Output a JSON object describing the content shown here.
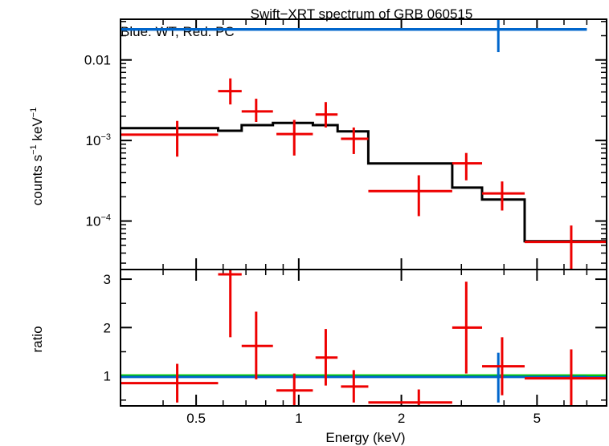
{
  "chart_data": {
    "type": "scatter",
    "title": "Swift−XRT spectrum of GRB 060515",
    "subtitle": "Blue: WT, Red: PC",
    "xlabel": "Energy (keV)",
    "xscale": "log",
    "xlim": [
      0.3,
      8.0
    ],
    "x_ticks": [
      {
        "v": 0.5,
        "label": "0.5"
      },
      {
        "v": 1,
        "label": "1"
      },
      {
        "v": 2,
        "label": "2"
      },
      {
        "v": 5,
        "label": "5"
      }
    ],
    "colors": {
      "pc": "#ee0000",
      "wt": "#0066cc",
      "model": "#000000",
      "unity": "#00cc00"
    },
    "top_panel": {
      "ylabel_main": "counts s",
      "ylabel_exp1": "−1",
      "ylabel_mid": " keV",
      "ylabel_exp2": "−1",
      "yscale": "log",
      "ylim": [
        2.5e-05,
        0.032
      ],
      "y_ticks": [
        {
          "v": 0.01,
          "label": "0.01"
        },
        {
          "v": 0.001,
          "base": "10",
          "exp": "−3"
        },
        {
          "v": 0.0001,
          "base": "10",
          "exp": "−4"
        }
      ],
      "pc_data": [
        {
          "x": 0.44,
          "xlo": 0.3,
          "xhi": 0.58,
          "y": 0.00118,
          "ylo": 0.00063,
          "yhi": 0.00175
        },
        {
          "x": 0.63,
          "xlo": 0.58,
          "xhi": 0.68,
          "y": 0.0041,
          "ylo": 0.0028,
          "yhi": 0.0059
        },
        {
          "x": 0.75,
          "xlo": 0.68,
          "xhi": 0.84,
          "y": 0.0023,
          "ylo": 0.0017,
          "yhi": 0.0033
        },
        {
          "x": 0.97,
          "xlo": 0.86,
          "xhi": 1.1,
          "y": 0.0012,
          "ylo": 0.00065,
          "yhi": 0.0018
        },
        {
          "x": 1.2,
          "xlo": 1.12,
          "xhi": 1.3,
          "y": 0.0021,
          "ylo": 0.00145,
          "yhi": 0.003
        },
        {
          "x": 1.45,
          "xlo": 1.33,
          "xhi": 1.6,
          "y": 0.00105,
          "ylo": 0.00068,
          "yhi": 0.00145
        },
        {
          "x": 2.25,
          "xlo": 1.6,
          "xhi": 2.82,
          "y": 0.000235,
          "ylo": 0.000115,
          "yhi": 0.00037
        },
        {
          "x": 3.1,
          "xlo": 2.82,
          "xhi": 3.45,
          "y": 0.00052,
          "ylo": 0.00032,
          "yhi": 0.0007
        },
        {
          "x": 3.95,
          "xlo": 3.45,
          "xhi": 4.6,
          "y": 0.00022,
          "ylo": 0.000135,
          "yhi": 0.00031
        },
        {
          "x": 6.3,
          "xlo": 4.6,
          "xhi": 8.0,
          "y": 5.5e-05,
          "ylo": 2.5e-05,
          "yhi": 8.8e-05
        }
      ],
      "wt_data": [
        {
          "x": 3.85,
          "xlo": 0.3,
          "xhi": 7.0,
          "y": 0.024,
          "ylo": 0.0125,
          "yhi": 0.036
        }
      ],
      "pc_model": [
        {
          "xlo": 0.3,
          "xhi": 0.58,
          "y": 0.00142
        },
        {
          "xlo": 0.58,
          "xhi": 0.68,
          "y": 0.00132
        },
        {
          "xlo": 0.68,
          "xhi": 0.84,
          "y": 0.00155
        },
        {
          "xlo": 0.84,
          "xhi": 1.1,
          "y": 0.00165
        },
        {
          "xlo": 1.1,
          "xhi": 1.3,
          "y": 0.00155
        },
        {
          "xlo": 1.3,
          "xhi": 1.6,
          "y": 0.0013
        },
        {
          "xlo": 1.6,
          "xhi": 2.82,
          "y": 0.00052
        },
        {
          "xlo": 2.82,
          "xhi": 3.45,
          "y": 0.00026
        },
        {
          "xlo": 3.45,
          "xhi": 4.6,
          "y": 0.000185
        },
        {
          "xlo": 4.6,
          "xhi": 8.0,
          "y": 5.6e-05
        }
      ],
      "wt_model": [
        {
          "xlo": 0.3,
          "xhi": 7.0,
          "y": 0.0238
        }
      ]
    },
    "bottom_panel": {
      "ylabel": "ratio",
      "yscale": "linear",
      "ylim": [
        0.38,
        3.2
      ],
      "y_ticks": [
        {
          "v": 1,
          "label": "1"
        },
        {
          "v": 2,
          "label": "2"
        },
        {
          "v": 3,
          "label": "3"
        }
      ],
      "unity": 1,
      "pc_ratio": [
        {
          "x": 0.44,
          "xlo": 0.3,
          "xhi": 0.58,
          "y": 0.85,
          "ylo": 0.45,
          "yhi": 1.25
        },
        {
          "x": 0.63,
          "xlo": 0.58,
          "xhi": 0.68,
          "y": 3.1,
          "ylo": 1.8,
          "yhi": 3.2
        },
        {
          "x": 0.75,
          "xlo": 0.68,
          "xhi": 0.84,
          "y": 1.62,
          "ylo": 0.93,
          "yhi": 2.33
        },
        {
          "x": 0.97,
          "xlo": 0.86,
          "xhi": 1.1,
          "y": 0.7,
          "ylo": 0.38,
          "yhi": 1.05
        },
        {
          "x": 1.2,
          "xlo": 1.12,
          "xhi": 1.3,
          "y": 1.38,
          "ylo": 0.8,
          "yhi": 1.97
        },
        {
          "x": 1.45,
          "xlo": 1.33,
          "xhi": 1.6,
          "y": 0.78,
          "ylo": 0.45,
          "yhi": 1.12
        },
        {
          "x": 2.25,
          "xlo": 1.6,
          "xhi": 2.82,
          "y": 0.45,
          "ylo": 0.38,
          "yhi": 0.72
        },
        {
          "x": 3.1,
          "xlo": 2.82,
          "xhi": 3.45,
          "y": 2.0,
          "ylo": 1.05,
          "yhi": 2.95
        },
        {
          "x": 3.95,
          "xlo": 3.45,
          "xhi": 4.6,
          "y": 1.2,
          "ylo": 0.6,
          "yhi": 1.8
        },
        {
          "x": 6.3,
          "xlo": 4.6,
          "xhi": 8.0,
          "y": 0.95,
          "ylo": 0.38,
          "yhi": 1.55
        }
      ],
      "wt_ratio": [
        {
          "x": 3.85,
          "xlo": 0.3,
          "xhi": 7.0,
          "y": 0.98,
          "ylo": 0.45,
          "yhi": 1.48
        }
      ]
    }
  }
}
